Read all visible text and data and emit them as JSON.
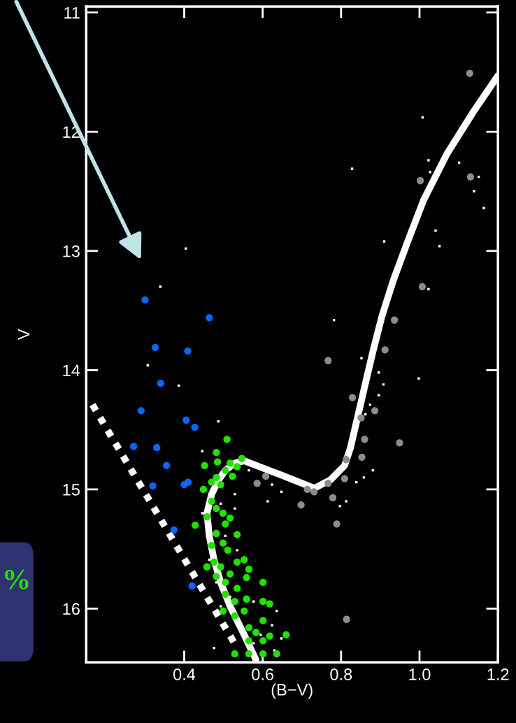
{
  "chart_data": {
    "type": "scatter",
    "xlabel": "(B−V)",
    "ylabel": "V",
    "xlim": [
      0.15,
      1.2
    ],
    "ylim": [
      16.45,
      10.95
    ],
    "xticks": [
      0.4,
      0.6,
      0.8,
      {
        "value": 1.0,
        "label": "1.0"
      },
      1.2
    ],
    "yticks": [
      11,
      12,
      13,
      14,
      15,
      16
    ],
    "grid": false,
    "legend": false,
    "annotations": [
      "%"
    ],
    "series": [
      {
        "type": "line",
        "color": "#ffffff",
        "line_style": "dashed",
        "marker": "none",
        "x": [
          0.166,
          0.53
        ],
        "values": [
          14.29,
          16.3
        ]
      },
      {
        "color": "#ffffff",
        "marker": "square",
        "x": [
          0.404,
          0.339,
          0.307,
          0.386,
          0.487,
          0.446,
          0.828,
          1.008,
          1.023,
          1.027,
          1.101,
          1.139,
          1.151,
          1.164,
          1.041,
          1.051,
          0.91,
          1.023,
          0.782,
          0.998,
          0.852,
          0.896,
          0.908,
          0.896,
          0.874,
          0.862,
          0.881,
          0.858,
          0.839,
          0.813,
          0.797,
          0.648,
          0.624,
          0.613,
          0.476,
          0.446,
          0.464,
          0.482,
          0.493,
          0.535,
          0.577,
          0.624,
          0.636,
          0.505,
          0.529,
          0.529,
          0.565,
          0.493,
          0.517,
          0.577,
          0.595,
          0.63,
          0.648
        ],
        "values": [
          12.98,
          13.3,
          13.96,
          14.13,
          14.43,
          14.68,
          12.31,
          11.88,
          12.24,
          12.34,
          12.26,
          12.5,
          12.38,
          12.64,
          12.83,
          12.96,
          12.92,
          13.32,
          13.58,
          14.07,
          13.9,
          14.02,
          14.12,
          14.21,
          14.29,
          14.37,
          14.84,
          14.9,
          14.94,
          15.1,
          15.14,
          15.02,
          14.96,
          15.1,
          16.33,
          15.2,
          15.59,
          15.78,
          15.98,
          15.51,
          16.29,
          16.14,
          16.02,
          15.39,
          15.16,
          15.04,
          14.84,
          15.12,
          15.9,
          15.94,
          16.22,
          16.35,
          16.25
        ]
      },
      {
        "type": "line",
        "color": "#ffffff",
        "line_style": "solid",
        "marker": "none",
        "x": [
          1.2,
          1.136,
          1.071,
          1.011,
          0.97,
          0.934,
          0.904,
          0.88,
          0.86,
          0.841,
          0.824,
          0.809,
          0.773,
          0.732,
          0.648,
          0.6,
          0.553,
          0.529,
          0.505,
          0.488,
          0.47,
          0.458,
          0.464,
          0.476,
          0.493,
          0.517,
          0.553,
          0.583
        ],
        "values": [
          11.53,
          11.84,
          12.18,
          12.57,
          12.92,
          13.24,
          13.55,
          13.86,
          14.14,
          14.41,
          14.65,
          14.8,
          14.92,
          14.99,
          14.88,
          14.82,
          14.76,
          14.78,
          14.84,
          14.92,
          15.04,
          15.2,
          15.39,
          15.59,
          15.78,
          15.98,
          16.22,
          16.43
        ]
      },
      {
        "color": "#8c8c8c",
        "marker": "circle",
        "x": [
          1.128,
          1.002,
          1.13,
          1.007,
          0.936,
          0.912,
          0.767,
          0.829,
          0.886,
          0.851,
          0.86,
          0.949,
          0.853,
          0.813,
          0.809,
          0.767,
          0.731,
          0.714,
          0.779,
          0.698,
          0.789,
          0.586,
          0.608,
          0.814
        ],
        "values": [
          11.51,
          12.41,
          12.38,
          13.3,
          13.58,
          13.83,
          13.92,
          14.23,
          14.34,
          14.4,
          14.58,
          14.61,
          14.73,
          14.75,
          14.91,
          14.95,
          15.02,
          15.0,
          15.07,
          15.13,
          15.29,
          14.95,
          14.89,
          16.09
        ]
      },
      {
        "color": "#0a64ff",
        "marker": "circle",
        "x": [
          0.3,
          0.464,
          0.326,
          0.409,
          0.34,
          0.29,
          0.405,
          0.427,
          0.271,
          0.33,
          0.355,
          0.32,
          0.4,
          0.41,
          0.374,
          0.42
        ],
        "values": [
          13.41,
          13.56,
          13.81,
          13.84,
          14.11,
          14.34,
          14.42,
          14.48,
          14.64,
          14.65,
          14.8,
          14.97,
          14.96,
          14.94,
          15.34,
          15.81
        ]
      },
      {
        "color": "#22e000",
        "marker": "circle",
        "x": [
          0.509,
          0.482,
          0.452,
          0.485,
          0.517,
          0.547,
          0.535,
          0.505,
          0.523,
          0.482,
          0.47,
          0.493,
          0.449,
          0.47,
          0.482,
          0.458,
          0.499,
          0.517,
          0.428,
          0.505,
          0.482,
          0.535,
          0.499,
          0.47,
          0.511,
          0.458,
          0.476,
          0.493,
          0.535,
          0.553,
          0.565,
          0.517,
          0.482,
          0.559,
          0.505,
          0.601,
          0.535,
          0.505,
          0.529,
          0.559,
          0.601,
          0.618,
          0.499,
          0.529,
          0.553,
          0.601,
          0.565,
          0.583,
          0.618,
          0.66,
          0.601,
          0.565,
          0.529,
          0.565,
          0.601,
          0.636
        ],
        "values": [
          14.58,
          14.69,
          14.8,
          14.77,
          14.78,
          14.74,
          14.81,
          14.84,
          14.89,
          14.9,
          14.94,
          14.96,
          15.0,
          15.1,
          15.16,
          15.23,
          15.2,
          15.24,
          15.3,
          15.29,
          15.37,
          15.38,
          15.45,
          15.47,
          15.51,
          15.65,
          15.61,
          15.65,
          15.61,
          15.59,
          15.67,
          15.71,
          15.73,
          15.74,
          15.78,
          15.78,
          15.83,
          15.88,
          15.94,
          15.92,
          15.94,
          15.96,
          16.02,
          16.06,
          16.02,
          16.1,
          16.16,
          16.2,
          16.23,
          16.22,
          16.27,
          16.27,
          16.38,
          16.38,
          16.38,
          16.38
        ]
      }
    ]
  }
}
